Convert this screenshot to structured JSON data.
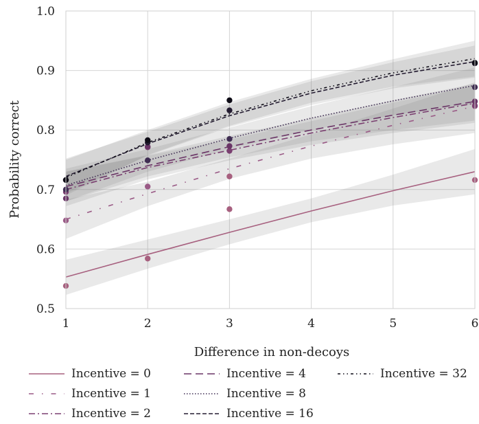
{
  "chart_data": {
    "type": "line",
    "title": "",
    "xlabel": "Difference in non-decoys",
    "ylabel": "Probability correct",
    "xlim": [
      1,
      6
    ],
    "ylim": [
      0.5,
      1.0
    ],
    "xticks": [
      "1",
      "2",
      "3",
      "4",
      "5",
      "6"
    ],
    "yticks": [
      "0.5",
      "0.6",
      "0.7",
      "0.8",
      "0.9",
      "1.0"
    ],
    "grid": true,
    "legend_position": "bottom",
    "x": [
      1,
      2,
      3,
      4,
      5,
      6
    ],
    "series": [
      {
        "name": "Incentive = 0",
        "color": "#a7607f",
        "dash": "solid",
        "fit": [
          0.553,
          0.591,
          0.628,
          0.664,
          0.698,
          0.73
        ],
        "band": {
          "low": [
            0.523,
            0.567,
            0.608,
            0.645,
            0.673,
            0.692
          ],
          "high": [
            0.582,
            0.616,
            0.65,
            0.685,
            0.725,
            0.768
          ]
        },
        "points": [
          0.538,
          0.584,
          0.667,
          null,
          null,
          0.716
        ],
        "points_x3_extra": 0.722
      },
      {
        "name": "Incentive = 1",
        "color": "#9a5a86",
        "dash": "loose-dashdot",
        "fit": [
          0.65,
          0.693,
          0.735,
          0.773,
          0.808,
          0.84
        ],
        "band": {
          "low": [
            0.617,
            0.672,
            0.718,
            0.752,
            0.776,
            0.795
          ],
          "high": [
            0.683,
            0.713,
            0.752,
            0.793,
            0.836,
            0.88
          ]
        },
        "points": [
          0.648,
          0.705,
          null,
          null,
          null,
          0.84
        ]
      },
      {
        "name": "Incentive = 2",
        "color": "#7a3f70",
        "dash": "dashdot",
        "fit": [
          0.7,
          0.737,
          0.766,
          0.795,
          0.821,
          0.845
        ],
        "band": {
          "low": [
            0.672,
            0.717,
            0.749,
            0.775,
            0.795,
            0.812
          ],
          "high": [
            0.73,
            0.757,
            0.784,
            0.815,
            0.846,
            0.875
          ]
        },
        "points": [
          0.696,
          0.771,
          0.765,
          null,
          null,
          0.841
        ]
      },
      {
        "name": "Incentive = 4",
        "color": "#6a3566",
        "dash": "dashed-long",
        "fit": [
          0.705,
          0.74,
          0.772,
          0.8,
          0.825,
          0.848
        ],
        "band": {
          "low": [
            0.68,
            0.722,
            0.754,
            0.781,
            0.8,
            0.816
          ],
          "high": [
            0.73,
            0.758,
            0.79,
            0.82,
            0.85,
            0.878
          ]
        },
        "points": [
          0.685,
          0.772,
          0.773,
          null,
          null,
          0.848
        ]
      },
      {
        "name": "Incentive = 8",
        "color": "#3f2d52",
        "dash": "dotted",
        "fit": [
          0.707,
          0.749,
          0.786,
          0.82,
          0.849,
          0.875
        ],
        "band": {
          "low": [
            0.68,
            0.73,
            0.768,
            0.8,
            0.825,
            0.844
          ],
          "high": [
            0.735,
            0.768,
            0.804,
            0.84,
            0.872,
            0.905
          ]
        },
        "points": [
          0.7,
          0.749,
          0.785,
          null,
          null,
          0.872
        ]
      },
      {
        "name": "Incentive = 16",
        "color": "#231b30",
        "dash": "dashed",
        "fit": [
          0.722,
          0.777,
          0.824,
          0.862,
          0.892,
          0.915
        ],
        "band": {
          "low": [
            0.693,
            0.757,
            0.805,
            0.842,
            0.87,
            0.888
          ],
          "high": [
            0.752,
            0.797,
            0.843,
            0.882,
            0.914,
            0.942
          ]
        },
        "points": [
          0.716,
          0.779,
          0.833,
          null,
          null,
          0.912
        ]
      },
      {
        "name": "Incentive = 32",
        "color": "#0e0c16",
        "dash": "sparse-dotdash",
        "fit": [
          0.72,
          0.779,
          0.827,
          0.866,
          0.896,
          0.92
        ],
        "band": {
          "low": [
            0.69,
            0.758,
            0.807,
            0.846,
            0.873,
            0.89
          ],
          "high": [
            0.75,
            0.8,
            0.847,
            0.886,
            0.919,
            0.95
          ]
        },
        "points": [
          0.716,
          0.783,
          0.85,
          null,
          null,
          0.913
        ]
      }
    ]
  }
}
